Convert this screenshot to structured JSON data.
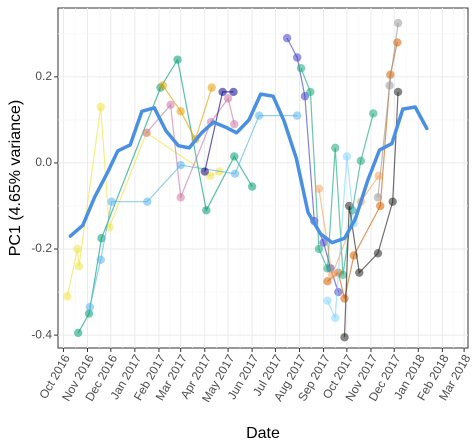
{
  "chart_data": {
    "type": "line",
    "title": "",
    "xlabel": "Date",
    "ylabel": "PC1 (4.65% variance)",
    "x_type": "date",
    "xlim": [
      "2016-09-24",
      "2018-03-06"
    ],
    "ylim": [
      -0.43,
      0.36
    ],
    "x_ticks": [
      {
        "date": "2016-10-01",
        "label": "Oct 2016"
      },
      {
        "date": "2016-11-01",
        "label": "Nov 2016"
      },
      {
        "date": "2016-12-01",
        "label": "Dec 2016"
      },
      {
        "date": "2017-01-01",
        "label": "Jan 2017"
      },
      {
        "date": "2017-02-01",
        "label": "Feb 2017"
      },
      {
        "date": "2017-03-01",
        "label": "Mar 2017"
      },
      {
        "date": "2017-04-01",
        "label": "Apr 2017"
      },
      {
        "date": "2017-05-01",
        "label": "May 2017"
      },
      {
        "date": "2017-06-01",
        "label": "Jun 2017"
      },
      {
        "date": "2017-07-01",
        "label": "Jul 2017"
      },
      {
        "date": "2017-08-01",
        "label": "Aug 2017"
      },
      {
        "date": "2017-09-01",
        "label": "Sep 2017"
      },
      {
        "date": "2017-10-01",
        "label": "Oct 2017"
      },
      {
        "date": "2017-11-01",
        "label": "Nov 2017"
      },
      {
        "date": "2017-12-01",
        "label": "Dec 2017"
      },
      {
        "date": "2018-01-01",
        "label": "Jan 2018"
      },
      {
        "date": "2018-02-01",
        "label": "Feb 2018"
      },
      {
        "date": "2018-03-01",
        "label": "Mar 2018"
      }
    ],
    "y_ticks": [
      {
        "value": 0.2,
        "label": "0.2"
      },
      {
        "value": 0.0,
        "label": "0.0"
      },
      {
        "value": -0.2,
        "label": "-0.2"
      },
      {
        "value": -0.4,
        "label": "-0.4"
      }
    ],
    "grid": true,
    "legend": "none",
    "series": [
      {
        "color": "#f0e442",
        "points": [
          {
            "x": "2016-10-06",
            "y": -0.31
          },
          {
            "x": "2016-10-19",
            "y": -0.2
          },
          {
            "x": "2016-10-21",
            "y": -0.24
          },
          {
            "x": "2016-11-18",
            "y": 0.13
          },
          {
            "x": "2016-11-29",
            "y": -0.15
          },
          {
            "x": "2017-01-16",
            "y": 0.07
          },
          {
            "x": "2017-04-08",
            "y": -0.03
          },
          {
            "x": "2017-04-20",
            "y": -0.02
          }
        ]
      },
      {
        "color": "#009e73",
        "points": [
          {
            "x": "2016-10-20",
            "y": -0.395
          },
          {
            "x": "2016-11-03",
            "y": -0.35
          },
          {
            "x": "2016-11-19",
            "y": -0.175
          },
          {
            "x": "2017-02-03",
            "y": 0.175
          },
          {
            "x": "2017-02-25",
            "y": 0.24
          },
          {
            "x": "2017-04-03",
            "y": -0.11
          },
          {
            "x": "2017-05-09",
            "y": 0.015
          },
          {
            "x": "2017-06-01",
            "y": -0.055
          }
        ]
      },
      {
        "color": "#56b4e9",
        "points": [
          {
            "x": "2016-11-04",
            "y": -0.335
          },
          {
            "x": "2016-11-18",
            "y": -0.225
          },
          {
            "x": "2016-12-02",
            "y": -0.09
          },
          {
            "x": "2017-01-17",
            "y": -0.09
          },
          {
            "x": "2017-03-01",
            "y": -0.005
          },
          {
            "x": "2017-05-10",
            "y": -0.025
          },
          {
            "x": "2017-06-10",
            "y": 0.11
          },
          {
            "x": "2017-07-29",
            "y": 0.11
          }
        ]
      },
      {
        "color": "#cc79a7",
        "points": [
          {
            "x": "2017-01-16",
            "y": 0.07
          },
          {
            "x": "2017-02-16",
            "y": 0.135
          },
          {
            "x": "2017-03-01",
            "y": -0.08
          },
          {
            "x": "2017-04-09",
            "y": 0.095
          },
          {
            "x": "2017-05-01",
            "y": 0.15
          },
          {
            "x": "2017-05-09",
            "y": 0.09
          }
        ]
      },
      {
        "color": "#e69f00",
        "points": [
          {
            "x": "2017-02-06",
            "y": 0.18
          },
          {
            "x": "2017-03-01",
            "y": 0.12
          },
          {
            "x": "2017-03-20",
            "y": 0.055
          },
          {
            "x": "2017-04-10",
            "y": 0.175
          }
        ]
      },
      {
        "color": "#0d0887",
        "points": [
          {
            "x": "2017-04-01",
            "y": -0.02
          },
          {
            "x": "2017-04-24",
            "y": 0.165
          },
          {
            "x": "2017-05-08",
            "y": 0.165
          }
        ]
      },
      {
        "color": "#3f3fc8",
        "points": [
          {
            "x": "2017-07-16",
            "y": 0.29
          },
          {
            "x": "2017-07-29",
            "y": 0.245
          },
          {
            "x": "2017-08-08",
            "y": 0.155
          },
          {
            "x": "2017-08-20",
            "y": -0.135
          },
          {
            "x": "2017-09-01",
            "y": -0.185
          },
          {
            "x": "2017-09-10",
            "y": -0.245
          },
          {
            "x": "2017-09-20",
            "y": -0.3
          }
        ]
      },
      {
        "color": "#1aa87c",
        "points": [
          {
            "x": "2017-08-03",
            "y": 0.22
          },
          {
            "x": "2017-08-15",
            "y": 0.165
          },
          {
            "x": "2017-08-26",
            "y": -0.2
          },
          {
            "x": "2017-09-06",
            "y": -0.245
          },
          {
            "x": "2017-09-16",
            "y": 0.035
          },
          {
            "x": "2017-09-26",
            "y": -0.26
          },
          {
            "x": "2017-10-08",
            "y": -0.11
          },
          {
            "x": "2017-10-19",
            "y": 0.005
          },
          {
            "x": "2017-11-04",
            "y": 0.115
          }
        ]
      },
      {
        "color": "#d55e00",
        "points": [
          {
            "x": "2017-09-06",
            "y": -0.275
          },
          {
            "x": "2017-09-20",
            "y": -0.255
          },
          {
            "x": "2017-09-28",
            "y": -0.315
          },
          {
            "x": "2017-10-10",
            "y": -0.215
          },
          {
            "x": "2017-11-13",
            "y": -0.1
          },
          {
            "x": "2017-11-26",
            "y": 0.205
          },
          {
            "x": "2017-12-05",
            "y": 0.28
          }
        ]
      },
      {
        "color": "#f5a35c",
        "points": [
          {
            "x": "2017-08-26",
            "y": -0.06
          },
          {
            "x": "2017-09-12",
            "y": -0.26
          },
          {
            "x": "2017-10-19",
            "y": -0.09
          },
          {
            "x": "2017-11-11",
            "y": -0.03
          }
        ]
      },
      {
        "color": "#222222",
        "points": [
          {
            "x": "2017-09-28",
            "y": -0.405
          },
          {
            "x": "2017-10-04",
            "y": -0.1
          },
          {
            "x": "2017-10-17",
            "y": -0.255
          },
          {
            "x": "2017-11-10",
            "y": -0.21
          },
          {
            "x": "2017-11-29",
            "y": -0.09
          },
          {
            "x": "2017-12-06",
            "y": 0.165
          }
        ]
      },
      {
        "color": "#999999",
        "points": [
          {
            "x": "2017-11-10",
            "y": -0.08
          },
          {
            "x": "2017-11-25",
            "y": 0.18
          },
          {
            "x": "2017-12-06",
            "y": 0.325
          }
        ]
      },
      {
        "color": "#7fd7ff",
        "points": [
          {
            "x": "2017-09-06",
            "y": -0.32
          },
          {
            "x": "2017-09-16",
            "y": -0.36
          },
          {
            "x": "2017-10-01",
            "y": 0.015
          },
          {
            "x": "2017-10-10",
            "y": -0.14
          }
        ]
      },
      {
        "color": "#4a90e2",
        "role": "trend",
        "points": [
          {
            "x": "2016-10-10",
            "y": -0.17
          },
          {
            "x": "2016-10-26",
            "y": -0.145
          },
          {
            "x": "2016-11-10",
            "y": -0.08
          },
          {
            "x": "2016-11-26",
            "y": -0.025
          },
          {
            "x": "2016-12-10",
            "y": 0.028
          },
          {
            "x": "2016-12-26",
            "y": 0.042
          },
          {
            "x": "2017-01-10",
            "y": 0.12
          },
          {
            "x": "2017-01-26",
            "y": 0.128
          },
          {
            "x": "2017-02-10",
            "y": 0.075
          },
          {
            "x": "2017-02-26",
            "y": 0.04
          },
          {
            "x": "2017-03-12",
            "y": 0.035
          },
          {
            "x": "2017-03-28",
            "y": 0.07
          },
          {
            "x": "2017-04-12",
            "y": 0.095
          },
          {
            "x": "2017-04-28",
            "y": 0.083
          },
          {
            "x": "2017-05-12",
            "y": 0.07
          },
          {
            "x": "2017-05-28",
            "y": 0.1
          },
          {
            "x": "2017-06-12",
            "y": 0.16
          },
          {
            "x": "2017-06-28",
            "y": 0.155
          },
          {
            "x": "2017-07-12",
            "y": 0.098
          },
          {
            "x": "2017-07-28",
            "y": 0.01
          },
          {
            "x": "2017-08-12",
            "y": -0.115
          },
          {
            "x": "2017-08-28",
            "y": -0.165
          },
          {
            "x": "2017-09-12",
            "y": -0.185
          },
          {
            "x": "2017-09-28",
            "y": -0.175
          },
          {
            "x": "2017-10-12",
            "y": -0.13
          },
          {
            "x": "2017-10-28",
            "y": -0.04
          },
          {
            "x": "2017-11-12",
            "y": 0.03
          },
          {
            "x": "2017-11-28",
            "y": 0.045
          },
          {
            "x": "2017-12-12",
            "y": 0.125
          },
          {
            "x": "2017-12-28",
            "y": 0.13
          },
          {
            "x": "2018-01-12",
            "y": 0.08
          }
        ]
      }
    ]
  }
}
